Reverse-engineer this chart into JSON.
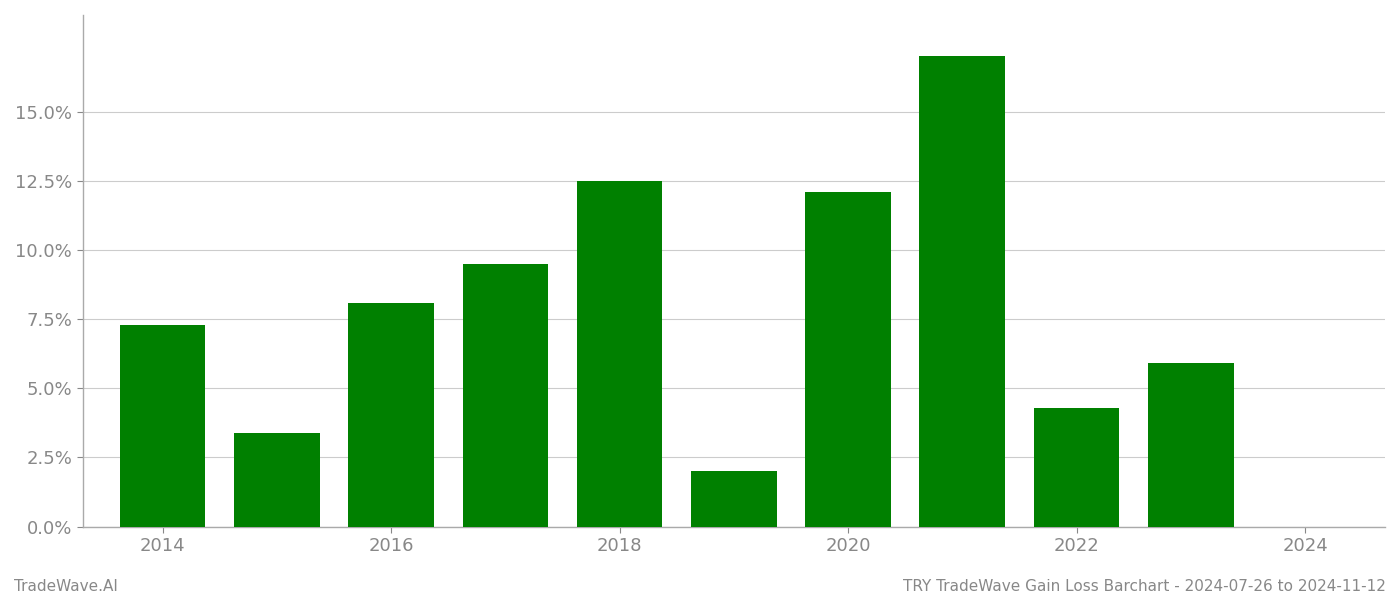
{
  "years": [
    2014,
    2015,
    2016,
    2017,
    2018,
    2019,
    2020,
    2021,
    2022,
    2023
  ],
  "values": [
    0.073,
    0.034,
    0.081,
    0.095,
    0.125,
    0.02,
    0.121,
    0.17,
    0.043,
    0.059
  ],
  "bar_color": "#008000",
  "background_color": "#ffffff",
  "ylabel_ticks": [
    0.0,
    0.025,
    0.05,
    0.075,
    0.1,
    0.125,
    0.15
  ],
  "ylim": [
    0,
    0.185
  ],
  "grid_color": "#cccccc",
  "title_text": "TRY TradeWave Gain Loss Barchart - 2024-07-26 to 2024-11-12",
  "watermark_text": "TradeWave.AI",
  "title_color": "#888888",
  "watermark_color": "#888888",
  "bar_width": 0.75,
  "tick_label_color": "#888888",
  "spine_color": "#aaaaaa",
  "xtick_labels": [
    "2014",
    "2016",
    "2018",
    "2020",
    "2022",
    "2024"
  ],
  "xtick_positions": [
    0,
    2,
    4,
    6,
    8,
    10
  ],
  "ylabel_fontsize": 13,
  "xlabel_fontsize": 13,
  "footer_fontsize": 11
}
